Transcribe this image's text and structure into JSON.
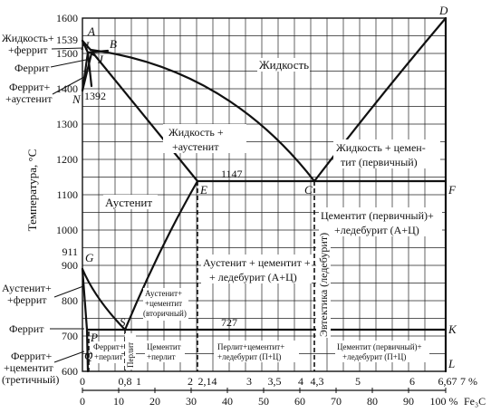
{
  "axes": {
    "ylabel": "Температура, °С",
    "y_ticks": [
      "1600",
      "1500",
      "1400",
      "1300",
      "1200",
      "1100",
      "1000",
      "900",
      "800",
      "700",
      "600"
    ],
    "extra_y_ticks": [
      "1539",
      "1392",
      "911"
    ],
    "x_ticks_carbon": [
      "0",
      "0,8",
      "1",
      "2",
      "2,14",
      "3",
      "3,5",
      "4",
      "4,3",
      "5",
      "6",
      "6,67",
      "7 %"
    ],
    "x_ticks_fe3c": [
      "0",
      "10",
      "20",
      "30",
      "40",
      "50",
      "60",
      "70",
      "80",
      "90",
      "100 %"
    ],
    "x_unit_fe3c": "Fe₃C"
  },
  "points": {
    "A": "A",
    "H": "H",
    "B": "B",
    "J": "J",
    "N": "N",
    "D": "D",
    "E": "E",
    "C": "C",
    "F": "F",
    "G": "G",
    "P": "P",
    "S": "S",
    "K": "K",
    "Q": "Q",
    "L": "L"
  },
  "temps": {
    "eutectic": "1147",
    "eutectoid": "727"
  },
  "left_labels": {
    "liq_ferrite_1": "Жидкость+",
    "liq_ferrite_2": "+феррит",
    "ferrite_high": "Феррит",
    "ferrite_aust_1": "Феррит+",
    "ferrite_aust_2": "+аустенит",
    "aust_ferrite_1": "Аустенит+",
    "aust_ferrite_2": "+феррит",
    "ferrite_low": "Феррит",
    "ferr_cem_1": "Феррит+",
    "ferr_cem_2": "+цементит",
    "ferr_cem_3": "(третичный)"
  },
  "regions": {
    "liquid": "Жидкость",
    "liq_aust_1": "Жидкость +",
    "liq_aust_2": "+аустенит",
    "liq_cem_1": "Жидкость + цемен-",
    "liq_cem_2": "тит (первичный)",
    "austenite": "Аустенит",
    "cem_led_1": "Цементит (первичный)+",
    "cem_led_2": "+ледебурит (А+Ц)",
    "aus_cem_led_1": "Аустенит + цементит +",
    "aus_cem_led_2": "+ ледебурит (А+Ц)",
    "eutectic_vertical": "Эвтектика (ледебурит)",
    "aus_cem2_1": "Аустенит+",
    "aus_cem2_2": "+цементит",
    "aus_cem2_3": "(вторичный)",
    "ferr_perl_1": "Феррит+",
    "ferr_perl_2": "+перлит",
    "perlite": "Перлит",
    "cem_perl_1": "Цементит",
    "cem_perl_2": "+перлит",
    "perl_cem_led_1": "Перлит+цементит+",
    "perl_cem_led_2": "+ледебурит (П+Ц)",
    "cem_perl_led_1": "Цементит (первичный)+",
    "cem_perl_led_2": "+ледебурит (П+Ц)"
  }
}
